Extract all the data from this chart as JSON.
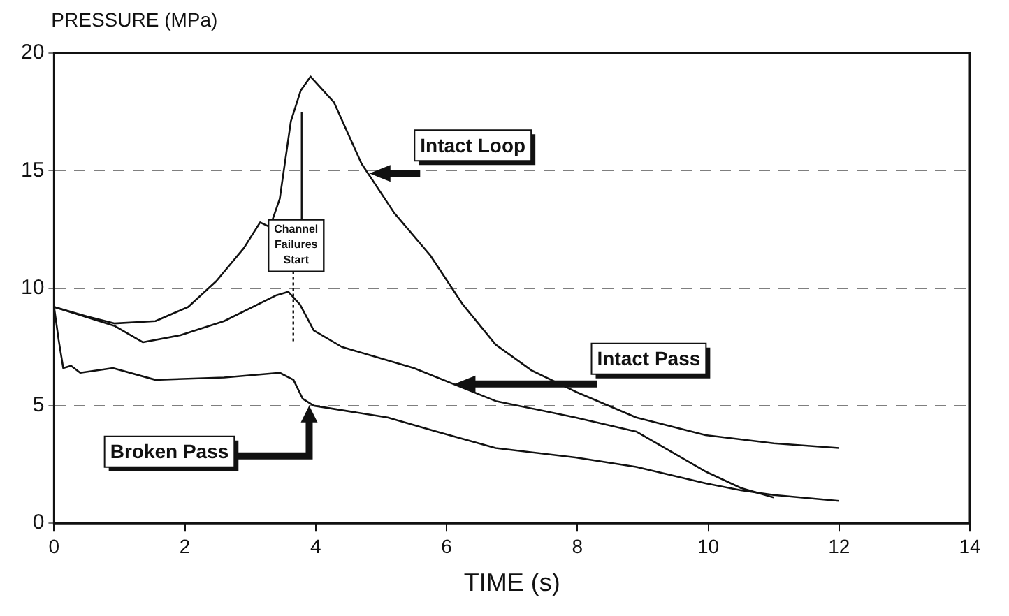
{
  "chart_data": {
    "type": "line",
    "xlabel": "TIME (s)",
    "ylabel": "PRESSURE (MPa)",
    "xlim": [
      0,
      14
    ],
    "xticks": [
      0,
      2,
      4,
      6,
      8,
      10,
      12,
      14
    ],
    "ylim": [
      0,
      20
    ],
    "yticks": [
      0,
      5,
      10,
      15,
      20
    ],
    "grid": "y",
    "legend": false,
    "marker": "none",
    "line_style": "solid",
    "series": [
      {
        "name": "Intact Loop",
        "color": "#111111",
        "x": [
          0,
          0.5,
          0.92,
          1.55,
          2.05,
          2.48,
          2.9,
          3.15,
          3.3,
          3.45,
          3.62,
          3.77,
          3.92,
          4.28,
          4.7,
          5.2,
          5.75,
          6.25,
          6.75,
          7.3,
          7.97,
          8.9,
          9.96,
          11,
          12
        ],
        "values": [
          9.2,
          8.8,
          8.5,
          8.6,
          9.2,
          10.3,
          11.7,
          12.8,
          12.6,
          13.8,
          17.1,
          18.4,
          19.0,
          17.9,
          15.3,
          13.2,
          11.4,
          9.3,
          7.6,
          6.5,
          5.6,
          4.5,
          3.75,
          3.4,
          3.2
        ]
      },
      {
        "name": "Intact Pass",
        "color": "#111111",
        "x": [
          0,
          0.92,
          1.36,
          1.93,
          2.6,
          3.4,
          3.58,
          3.76,
          3.97,
          4.4,
          5.5,
          6.75,
          7.97,
          8.9,
          9.96,
          10.5,
          11
        ],
        "values": [
          9.2,
          8.4,
          7.7,
          8.0,
          8.6,
          9.7,
          9.85,
          9.3,
          8.2,
          7.5,
          6.6,
          5.2,
          4.5,
          3.9,
          2.2,
          1.5,
          1.1
        ]
      },
      {
        "name": "Broken Pass",
        "color": "#111111",
        "x": [
          0,
          0.07,
          0.14,
          0.26,
          0.4,
          0.9,
          1.55,
          2.6,
          3.45,
          3.66,
          3.8,
          3.97,
          5.1,
          5.85,
          6.75,
          7.97,
          8.9,
          9.96,
          10.5,
          11,
          12
        ],
        "values": [
          9.2,
          7.8,
          6.6,
          6.7,
          6.4,
          6.6,
          6.1,
          6.2,
          6.4,
          6.1,
          5.3,
          5.0,
          4.5,
          3.9,
          3.2,
          2.8,
          2.4,
          1.7,
          1.4,
          1.2,
          0.95
        ]
      }
    ],
    "annotations": [
      "Channel Failures Start"
    ]
  }
}
